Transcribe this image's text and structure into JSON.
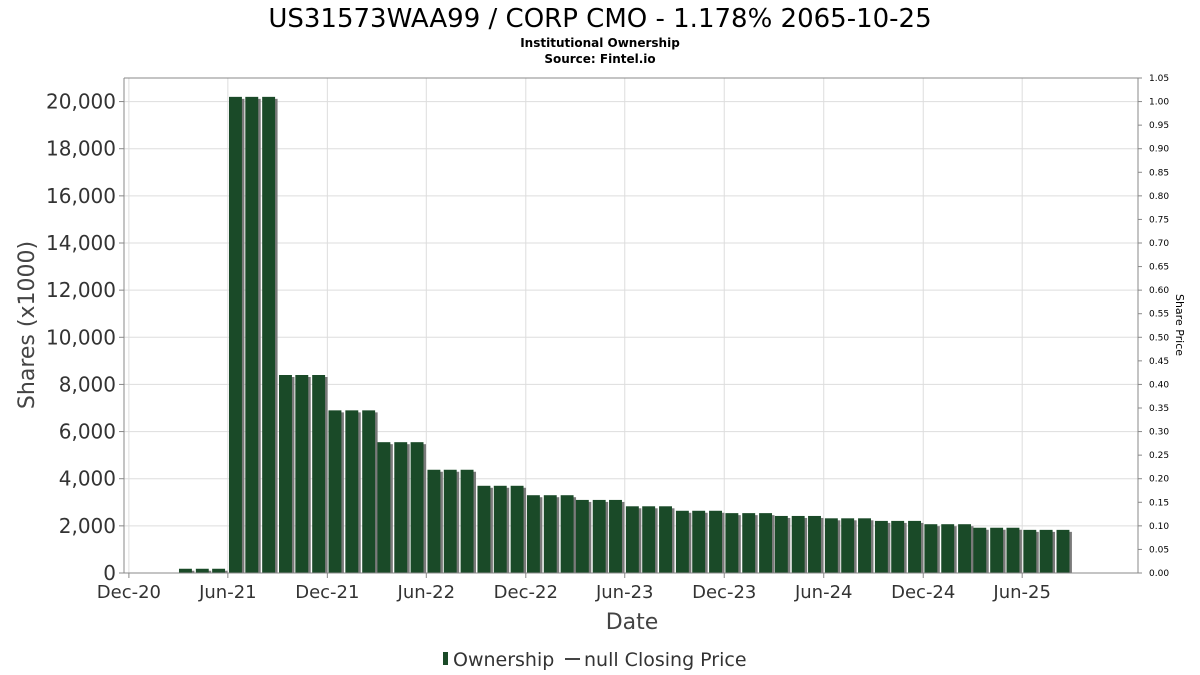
{
  "chart_data": {
    "type": "bar",
    "title": "US31573WAA99 / CORP CMO - 1.178% 2065-10-25",
    "subtitle": "Institutional Ownership",
    "source": "Source: Fintel.io",
    "xlabel": "Date",
    "ylabel": "Shares (x1000)",
    "y2label": "Share Price",
    "ylim": [
      0,
      21000
    ],
    "y2lim": [
      0,
      1.05
    ],
    "yticks": [
      0,
      2000,
      4000,
      6000,
      8000,
      10000,
      12000,
      14000,
      16000,
      18000,
      20000
    ],
    "ytick_labels": [
      "0",
      "2,000",
      "4,000",
      "6,000",
      "8,000",
      "10,000",
      "12,000",
      "14,000",
      "16,000",
      "18,000",
      "20,000"
    ],
    "y2ticks": [
      0,
      0.05,
      0.1,
      0.15,
      0.2,
      0.25,
      0.3,
      0.35,
      0.4,
      0.45,
      0.5,
      0.55,
      0.6,
      0.65,
      0.7,
      0.75,
      0.8,
      0.85,
      0.9,
      0.95,
      1.0,
      1.05
    ],
    "y2tick_labels": [
      "0.00",
      "0.05",
      "0.10",
      "0.15",
      "0.20",
      "0.25",
      "0.30",
      "0.35",
      "0.40",
      "0.45",
      "0.50",
      "0.55",
      "0.60",
      "0.65",
      "0.70",
      "0.75",
      "0.80",
      "0.85",
      "0.90",
      "0.95",
      "1.00",
      "1.05"
    ],
    "xlim": [
      "2020-11-22",
      "2025-12-31"
    ],
    "xticks": [
      {
        "label": "Dec-20",
        "date": "2020-12-01"
      },
      {
        "label": "Jun-21",
        "date": "2021-06-01"
      },
      {
        "label": "Dec-21",
        "date": "2021-12-01"
      },
      {
        "label": "Jun-22",
        "date": "2022-06-01"
      },
      {
        "label": "Dec-22",
        "date": "2022-12-01"
      },
      {
        "label": "Jun-23",
        "date": "2023-06-01"
      },
      {
        "label": "Dec-23",
        "date": "2023-12-01"
      },
      {
        "label": "Jun-24",
        "date": "2024-06-01"
      },
      {
        "label": "Dec-24",
        "date": "2024-12-01"
      },
      {
        "label": "Jun-25",
        "date": "2025-06-01"
      }
    ],
    "grid": true,
    "legend_position": "bottom",
    "colors": {
      "bar": "#1a4a28",
      "bar_shadow": "#7a7a7a",
      "grid": "#dddddd",
      "axis": "#888888"
    },
    "series": [
      {
        "name": "Ownership",
        "points": [
          {
            "date": "2021-03-15",
            "value": 180
          },
          {
            "date": "2021-04-15",
            "value": 180
          },
          {
            "date": "2021-05-15",
            "value": 180
          },
          {
            "date": "2021-06-15",
            "value": 20200
          },
          {
            "date": "2021-07-15",
            "value": 20200
          },
          {
            "date": "2021-08-15",
            "value": 20200
          },
          {
            "date": "2021-09-15",
            "value": 8400
          },
          {
            "date": "2021-10-15",
            "value": 8400
          },
          {
            "date": "2021-11-15",
            "value": 8400
          },
          {
            "date": "2021-12-15",
            "value": 6900
          },
          {
            "date": "2022-01-15",
            "value": 6900
          },
          {
            "date": "2022-02-15",
            "value": 6900
          },
          {
            "date": "2022-03-15",
            "value": 5550
          },
          {
            "date": "2022-04-15",
            "value": 5550
          },
          {
            "date": "2022-05-15",
            "value": 5550
          },
          {
            "date": "2022-06-15",
            "value": 4380
          },
          {
            "date": "2022-07-15",
            "value": 4380
          },
          {
            "date": "2022-08-15",
            "value": 4380
          },
          {
            "date": "2022-09-15",
            "value": 3700
          },
          {
            "date": "2022-10-15",
            "value": 3700
          },
          {
            "date": "2022-11-15",
            "value": 3700
          },
          {
            "date": "2022-12-15",
            "value": 3300
          },
          {
            "date": "2023-01-15",
            "value": 3300
          },
          {
            "date": "2023-02-15",
            "value": 3300
          },
          {
            "date": "2023-03-15",
            "value": 3100
          },
          {
            "date": "2023-04-15",
            "value": 3100
          },
          {
            "date": "2023-05-15",
            "value": 3100
          },
          {
            "date": "2023-06-15",
            "value": 2830
          },
          {
            "date": "2023-07-15",
            "value": 2830
          },
          {
            "date": "2023-08-15",
            "value": 2830
          },
          {
            "date": "2023-09-15",
            "value": 2640
          },
          {
            "date": "2023-10-15",
            "value": 2640
          },
          {
            "date": "2023-11-15",
            "value": 2640
          },
          {
            "date": "2023-12-15",
            "value": 2540
          },
          {
            "date": "2024-01-15",
            "value": 2540
          },
          {
            "date": "2024-02-15",
            "value": 2540
          },
          {
            "date": "2024-03-15",
            "value": 2420
          },
          {
            "date": "2024-04-15",
            "value": 2420
          },
          {
            "date": "2024-05-15",
            "value": 2420
          },
          {
            "date": "2024-06-15",
            "value": 2320
          },
          {
            "date": "2024-07-15",
            "value": 2320
          },
          {
            "date": "2024-08-15",
            "value": 2320
          },
          {
            "date": "2024-09-15",
            "value": 2210
          },
          {
            "date": "2024-10-15",
            "value": 2210
          },
          {
            "date": "2024-11-15",
            "value": 2210
          },
          {
            "date": "2024-12-15",
            "value": 2070
          },
          {
            "date": "2025-01-15",
            "value": 2070
          },
          {
            "date": "2025-02-15",
            "value": 2070
          },
          {
            "date": "2025-03-15",
            "value": 1920
          },
          {
            "date": "2025-04-15",
            "value": 1920
          },
          {
            "date": "2025-05-15",
            "value": 1920
          },
          {
            "date": "2025-06-15",
            "value": 1830
          },
          {
            "date": "2025-07-15",
            "value": 1830
          },
          {
            "date": "2025-08-15",
            "value": 1830
          },
          {
            "date": "2025-09-15",
            "value": 20
          }
        ]
      },
      {
        "name": "null Closing Price",
        "points": []
      }
    ]
  }
}
